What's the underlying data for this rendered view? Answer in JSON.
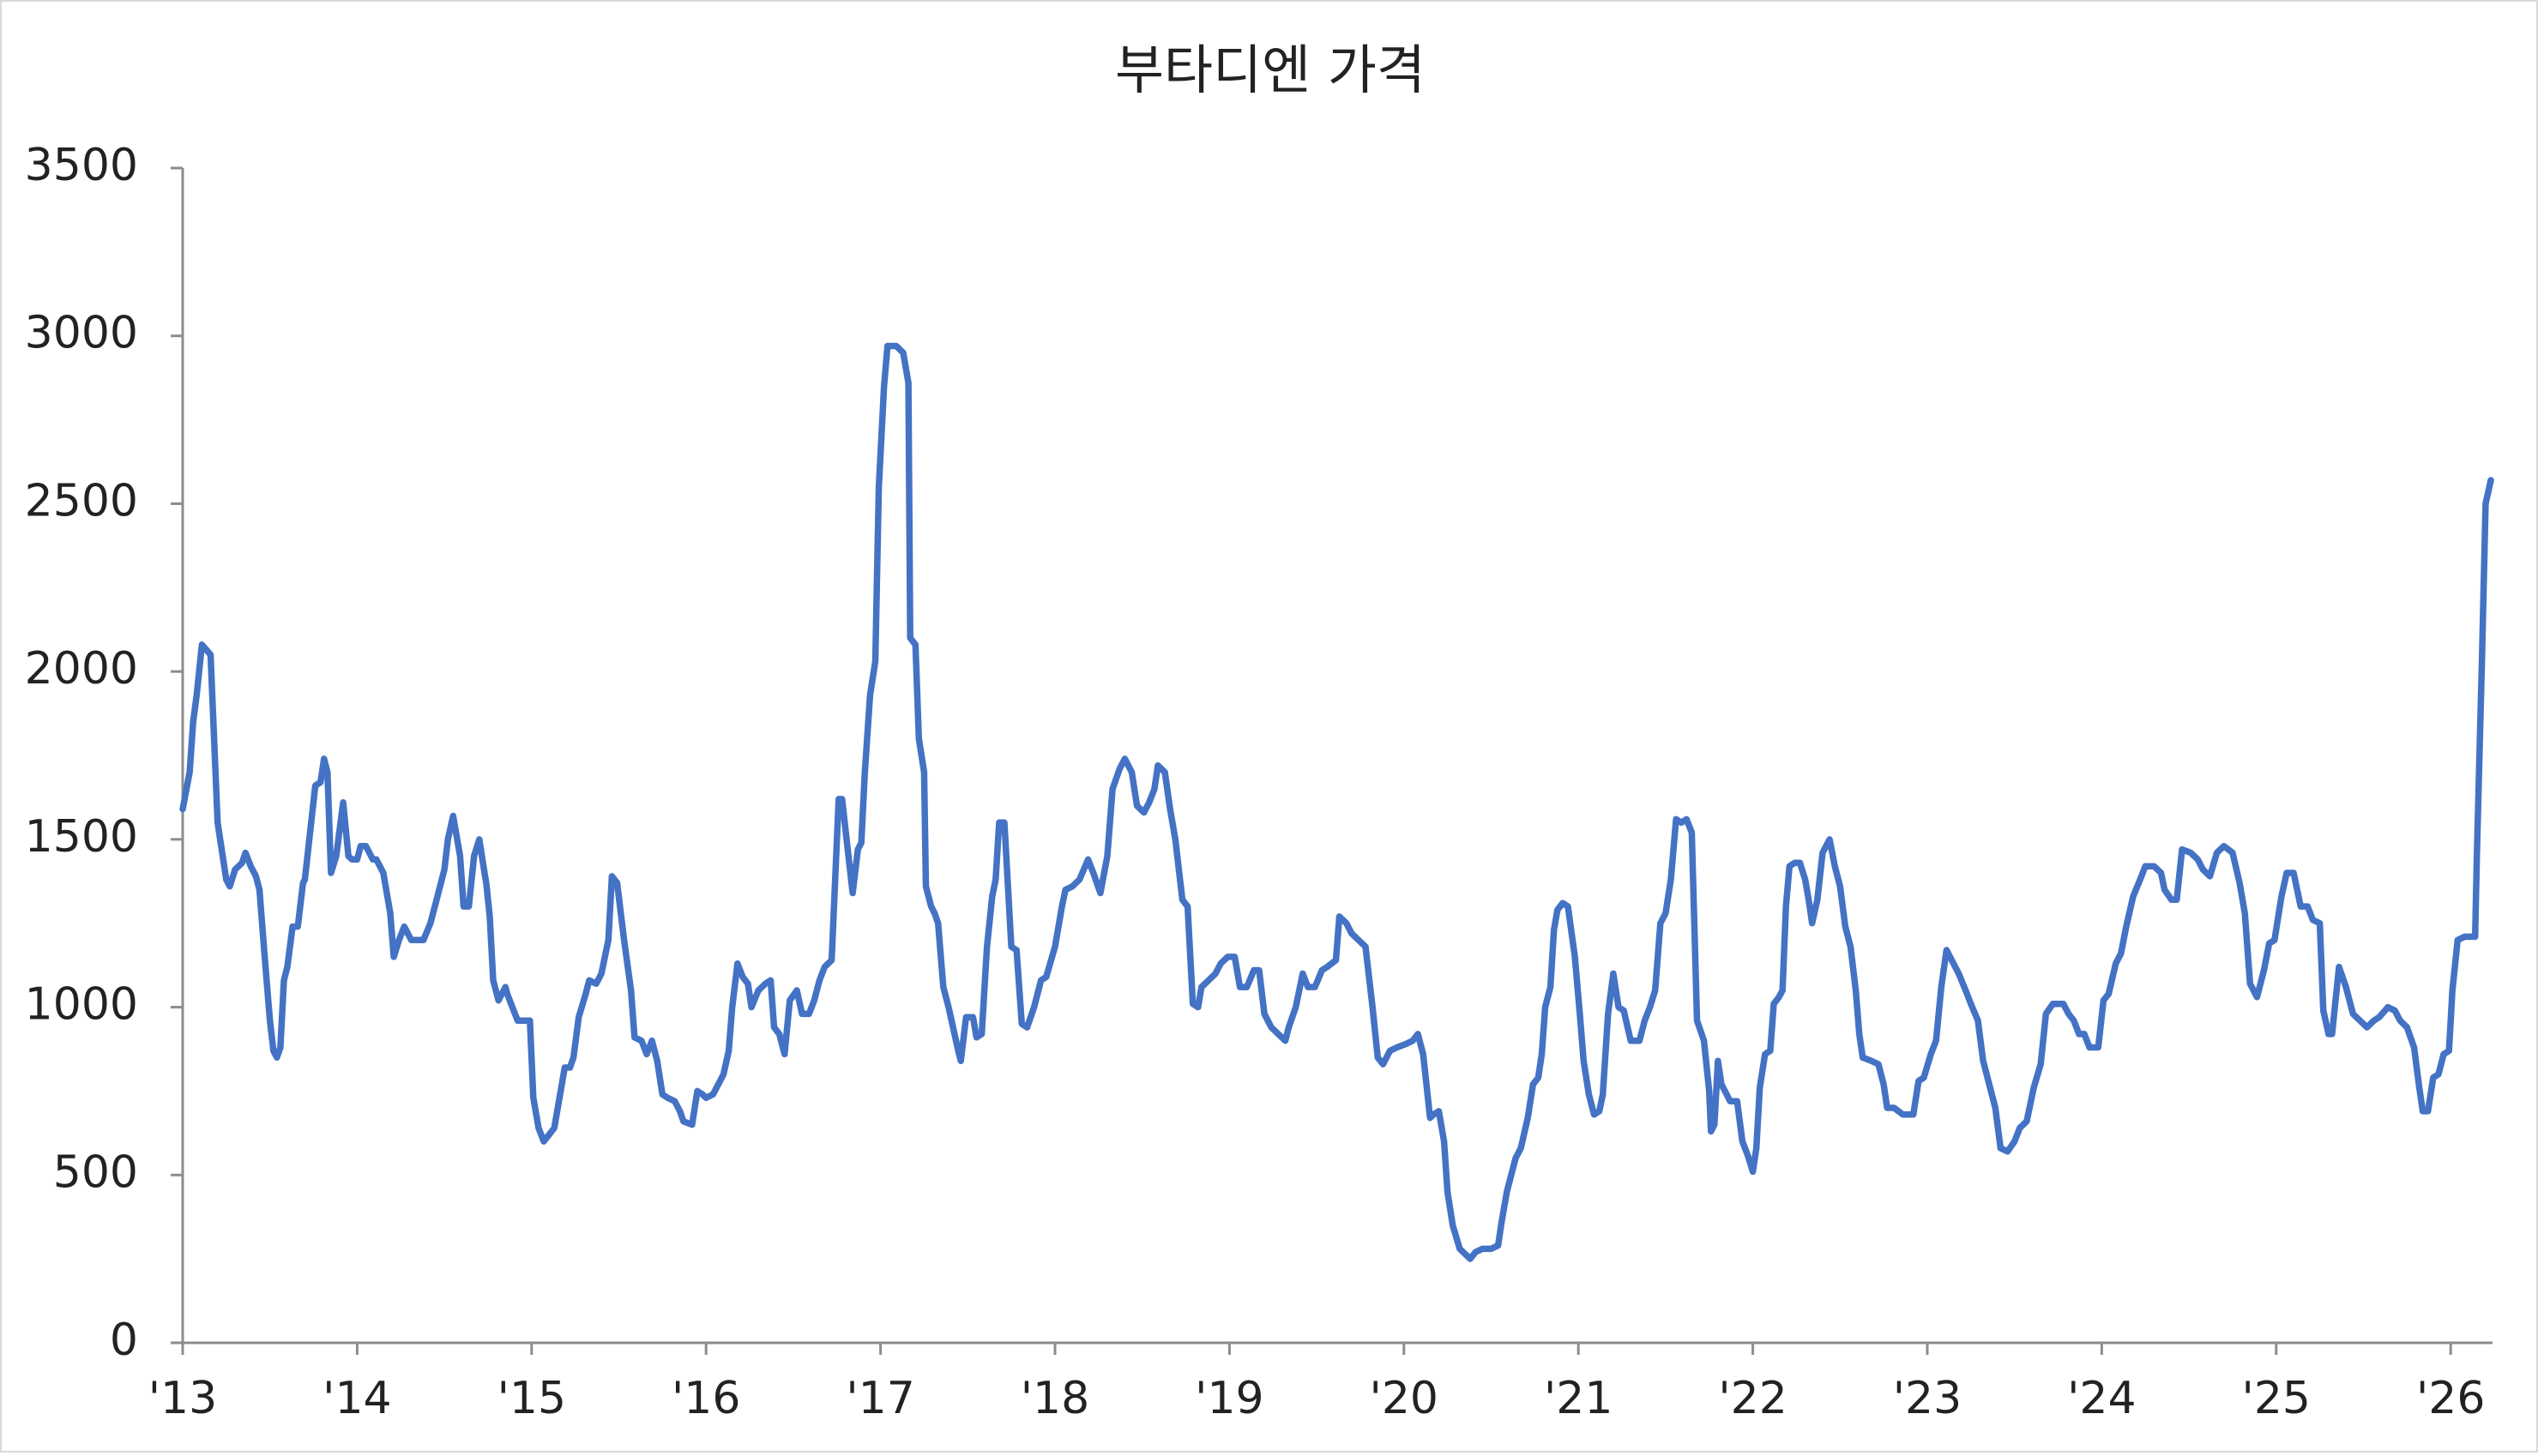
{
  "chart_data": {
    "type": "line",
    "title": "부타디엔 가격",
    "color": "#4472c4",
    "grid": false,
    "xlim": [
      2013,
      2026.24
    ],
    "ylim": [
      0,
      3500
    ],
    "yticks": [
      0,
      500,
      1000,
      1500,
      2000,
      2500,
      3000,
      3500
    ],
    "xticks": [
      {
        "value": 2013,
        "label": "'13"
      },
      {
        "value": 2014,
        "label": "'14"
      },
      {
        "value": 2015,
        "label": "'15"
      },
      {
        "value": 2016,
        "label": "'16"
      },
      {
        "value": 2017,
        "label": "'17"
      },
      {
        "value": 2018,
        "label": "'18"
      },
      {
        "value": 2019,
        "label": "'19"
      },
      {
        "value": 2020,
        "label": "'20"
      },
      {
        "value": 2021,
        "label": "'21"
      },
      {
        "value": 2022,
        "label": "'22"
      },
      {
        "value": 2023,
        "label": "'23"
      },
      {
        "value": 2024,
        "label": "'24"
      },
      {
        "value": 2025,
        "label": "'25"
      },
      {
        "value": 2026,
        "label": "'26"
      }
    ],
    "x": [
      2013.0,
      2013.04,
      2013.06,
      2013.08,
      2013.11,
      2013.16,
      2013.2,
      2013.25,
      2013.27,
      2013.3,
      2013.34,
      2013.36,
      2013.39,
      2013.42,
      2013.44,
      2013.47,
      2013.5,
      2013.52,
      2013.54,
      2013.56,
      2013.58,
      2013.6,
      2013.63,
      2013.66,
      2013.69,
      2013.7,
      2013.73,
      2013.76,
      2013.79,
      2013.81,
      2013.83,
      2013.85,
      2013.88,
      2013.92,
      2013.95,
      2013.97,
      2014.0,
      2014.02,
      2014.05,
      2014.09,
      2014.11,
      2014.15,
      2014.19,
      2014.21,
      2014.24,
      2014.27,
      2014.31,
      2014.38,
      2014.42,
      2014.46,
      2014.5,
      2014.52,
      2014.55,
      2014.59,
      2014.61,
      2014.64,
      2014.67,
      2014.7,
      2014.73,
      2014.74,
      2014.76,
      2014.78,
      2014.81,
      2014.85,
      2014.86,
      2014.89,
      2014.92,
      2014.96,
      2014.99,
      2015.01,
      2015.04,
      2015.07,
      2015.1,
      2015.13,
      2015.16,
      2015.19,
      2015.22,
      2015.24,
      2015.27,
      2015.31,
      2015.33,
      2015.37,
      2015.4,
      2015.44,
      2015.46,
      2015.49,
      2015.53,
      2015.57,
      2015.59,
      2015.63,
      2015.66,
      2015.69,
      2015.72,
      2015.75,
      2015.78,
      2015.82,
      2015.85,
      2015.87,
      2015.92,
      2015.95,
      2015.98,
      2016.0,
      2016.04,
      2016.07,
      2016.1,
      2016.13,
      2016.15,
      2016.18,
      2016.21,
      2016.24,
      2016.26,
      2016.3,
      2016.34,
      2016.37,
      2016.39,
      2016.42,
      2016.45,
      2016.48,
      2016.52,
      2016.55,
      2016.59,
      2016.62,
      2016.65,
      2016.68,
      2016.72,
      2016.74,
      2016.76,
      2016.78,
      2016.81,
      2016.84,
      2016.87,
      2016.89,
      2016.91,
      2016.94,
      2016.97,
      2016.99,
      2017.02,
      2017.04,
      2017.06,
      2017.09,
      2017.13,
      2017.16,
      2017.17,
      2017.2,
      2017.22,
      2017.25,
      2017.26,
      2017.29,
      2017.31,
      2017.33,
      2017.36,
      2017.39,
      2017.42,
      2017.45,
      2017.46,
      2017.49,
      2017.53,
      2017.55,
      2017.58,
      2017.61,
      2017.64,
      2017.66,
      2017.68,
      2017.71,
      2017.75,
      2017.78,
      2017.81,
      2017.84,
      2017.88,
      2017.92,
      2017.95,
      2018.0,
      2018.04,
      2018.06,
      2018.1,
      2018.14,
      2018.19,
      2018.22,
      2018.26,
      2018.3,
      2018.33,
      2018.37,
      2018.4,
      2018.44,
      2018.47,
      2018.51,
      2018.54,
      2018.57,
      2018.59,
      2018.63,
      2018.66,
      2018.69,
      2018.73,
      2018.76,
      2018.79,
      2018.82,
      2018.84,
      2018.88,
      2018.92,
      2018.95,
      2018.99,
      2019.03,
      2019.06,
      2019.1,
      2019.14,
      2019.17,
      2019.2,
      2019.24,
      2019.28,
      2019.32,
      2019.34,
      2019.38,
      2019.42,
      2019.45,
      2019.49,
      2019.53,
      2019.56,
      2019.61,
      2019.63,
      2019.67,
      2019.7,
      2019.74,
      2019.78,
      2019.82,
      2019.85,
      2019.88,
      2019.92,
      2019.96,
      2020.01,
      2020.05,
      2020.08,
      2020.11,
      2020.15,
      2020.17,
      2020.2,
      2020.23,
      2020.25,
      2020.28,
      2020.32,
      2020.36,
      2020.38,
      2020.41,
      2020.45,
      2020.5,
      2020.54,
      2020.56,
      2020.59,
      2020.62,
      2020.64,
      2020.67,
      2020.71,
      2020.74,
      2020.77,
      2020.79,
      2020.81,
      2020.84,
      2020.86,
      2020.88,
      2020.91,
      2020.94,
      2020.98,
      2021.01,
      2021.03,
      2021.06,
      2021.09,
      2021.12,
      2021.14,
      2021.17,
      2021.2,
      2021.23,
      2021.26,
      2021.3,
      2021.35,
      2021.38,
      2021.41,
      2021.44,
      2021.47,
      2021.5,
      2021.53,
      2021.56,
      2021.59,
      2021.62,
      2021.65,
      2021.68,
      2021.72,
      2021.75,
      2021.76,
      2021.78,
      2021.8,
      2021.82,
      2021.85,
      2021.87,
      2021.91,
      2021.94,
      2021.97,
      2022.0,
      2022.02,
      2022.04,
      2022.07,
      2022.1,
      2022.12,
      2022.15,
      2022.17,
      2022.19,
      2022.21,
      2022.24,
      2022.27,
      2022.3,
      2022.32,
      2022.34,
      2022.37,
      2022.4,
      2022.44,
      2022.47,
      2022.5,
      2022.53,
      2022.56,
      2022.59,
      2022.61,
      2022.63,
      2022.68,
      2022.72,
      2022.75,
      2022.77,
      2022.81,
      2022.86,
      2022.92,
      2022.95,
      2022.98,
      2023.02,
      2023.05,
      2023.08,
      2023.11,
      2023.14,
      2023.18,
      2023.22,
      2023.25,
      2023.29,
      2023.32,
      2023.36,
      2023.39,
      2023.42,
      2023.46,
      2023.5,
      2023.53,
      2023.57,
      2023.61,
      2023.65,
      2023.68,
      2023.72,
      2023.78,
      2023.81,
      2023.84,
      2023.87,
      2023.9,
      2023.93,
      2023.98,
      2024.01,
      2024.04,
      2024.08,
      2024.11,
      2024.14,
      2024.18,
      2024.22,
      2024.25,
      2024.3,
      2024.34,
      2024.36,
      2024.4,
      2024.43,
      2024.46,
      2024.51,
      2024.55,
      2024.58,
      2024.62,
      2024.66,
      2024.7,
      2024.75,
      2024.79,
      2024.82,
      2024.85,
      2024.89,
      2024.93,
      2024.96,
      2024.99,
      2025.03,
      2025.06,
      2025.1,
      2025.14,
      2025.18,
      2025.21,
      2025.25,
      2025.27,
      2025.3,
      2025.32,
      2025.36,
      2025.4,
      2025.44,
      2025.48,
      2025.52,
      2025.56,
      2025.59,
      2025.64,
      2025.68,
      2025.71,
      2025.75,
      2025.79,
      2025.82,
      2025.84,
      2025.87,
      2025.9,
      2025.93,
      2025.96,
      2025.99,
      2026.01,
      2026.04,
      2026.08,
      2026.14,
      2026.15,
      2026.18,
      2026.2,
      2026.23
    ],
    "values": [
      1590,
      1700,
      1850,
      1930,
      2080,
      2050,
      1550,
      1380,
      1360,
      1410,
      1430,
      1460,
      1420,
      1390,
      1350,
      1150,
      960,
      870,
      850,
      880,
      1080,
      1120,
      1240,
      1240,
      1370,
      1380,
      1520,
      1660,
      1670,
      1740,
      1700,
      1400,
      1450,
      1610,
      1450,
      1440,
      1440,
      1480,
      1480,
      1440,
      1440,
      1400,
      1280,
      1150,
      1200,
      1240,
      1200,
      1200,
      1250,
      1330,
      1410,
      1500,
      1570,
      1450,
      1300,
      1300,
      1450,
      1500,
      1400,
      1370,
      1270,
      1080,
      1020,
      1060,
      1040,
      1000,
      960,
      960,
      960,
      730,
      640,
      600,
      620,
      640,
      730,
      820,
      820,
      850,
      970,
      1040,
      1080,
      1070,
      1100,
      1200,
      1390,
      1370,
      1200,
      1050,
      910,
      900,
      860,
      900,
      840,
      740,
      730,
      720,
      690,
      660,
      650,
      750,
      740,
      730,
      740,
      770,
      800,
      870,
      1000,
      1130,
      1090,
      1070,
      1000,
      1050,
      1070,
      1080,
      940,
      920,
      860,
      1020,
      1050,
      980,
      980,
      1020,
      1080,
      1120,
      1140,
      1380,
      1620,
      1620,
      1480,
      1340,
      1470,
      1490,
      1700,
      1930,
      2030,
      2550,
      2850,
      2970,
      2970,
      2970,
      2950,
      2860,
      2100,
      2080,
      1800,
      1700,
      1360,
      1300,
      1280,
      1250,
      1060,
      1000,
      930,
      860,
      840,
      970,
      970,
      910,
      920,
      1180,
      1330,
      1380,
      1550,
      1550,
      1180,
      1170,
      950,
      940,
      1000,
      1080,
      1090,
      1180,
      1300,
      1350,
      1360,
      1380,
      1440,
      1400,
      1340,
      1450,
      1650,
      1710,
      1740,
      1700,
      1600,
      1580,
      1610,
      1650,
      1720,
      1700,
      1590,
      1500,
      1320,
      1300,
      1010,
      1000,
      1060,
      1080,
      1100,
      1130,
      1150,
      1150,
      1060,
      1060,
      1110,
      1110,
      980,
      940,
      920,
      900,
      940,
      1000,
      1100,
      1060,
      1060,
      1110,
      1120,
      1140,
      1270,
      1250,
      1220,
      1200,
      1180,
      1000,
      850,
      830,
      870,
      880,
      890,
      900,
      920,
      860,
      670,
      680,
      690,
      600,
      450,
      350,
      280,
      260,
      250,
      270,
      280,
      280,
      290,
      360,
      450,
      510,
      550,
      580,
      670,
      770,
      790,
      860,
      1000,
      1060,
      1230,
      1290,
      1310,
      1300,
      1150,
      970,
      840,
      740,
      680,
      690,
      740,
      980,
      1100,
      1000,
      990,
      900,
      900,
      960,
      1000,
      1050,
      1250,
      1280,
      1380,
      1560,
      1550,
      1560,
      1520,
      960,
      900,
      750,
      630,
      650,
      840,
      770,
      740,
      720,
      720,
      600,
      560,
      510,
      580,
      760,
      860,
      870,
      1010,
      1030,
      1050,
      1300,
      1420,
      1430,
      1430,
      1380,
      1320,
      1250,
      1320,
      1460,
      1500,
      1420,
      1360,
      1240,
      1180,
      1050,
      920,
      850,
      840,
      830,
      770,
      700,
      700,
      680,
      680,
      780,
      790,
      860,
      900,
      1060,
      1170,
      1140,
      1100,
      1050,
      1010,
      960,
      840,
      760,
      700,
      580,
      570,
      600,
      640,
      660,
      760,
      830,
      980,
      1010,
      1010,
      980,
      960,
      920,
      920,
      880,
      880,
      1020,
      1040,
      1130,
      1160,
      1240,
      1330,
      1380,
      1420,
      1420,
      1400,
      1350,
      1320,
      1320,
      1470,
      1460,
      1440,
      1410,
      1390,
      1460,
      1480,
      1460,
      1370,
      1280,
      1070,
      1030,
      1110,
      1190,
      1200,
      1330,
      1400,
      1400,
      1300,
      1300,
      1260,
      1250,
      990,
      920,
      920,
      1120,
      1060,
      980,
      960,
      940,
      960,
      970,
      1000,
      990,
      960,
      940,
      880,
      760,
      690,
      690,
      790,
      800,
      860,
      870,
      1050,
      1200,
      1210,
      1210,
      1450,
      2050,
      2500,
      2570
    ]
  }
}
